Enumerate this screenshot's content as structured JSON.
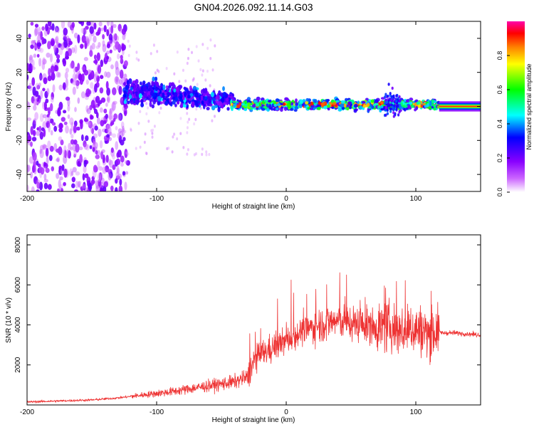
{
  "title": "GN04.2026.092.11.14.G03",
  "chart_data": [
    {
      "type": "heatmap",
      "title": "GN04.2026.092.11.14.G03",
      "xlabel": "Height of straight line (km)",
      "ylabel": "Frequency (Hz)",
      "xlim": [
        -200,
        150
      ],
      "ylim": [
        -50,
        50
      ],
      "xticks": [
        -200,
        -100,
        0,
        100
      ],
      "yticks": [
        -40,
        -20,
        0,
        20,
        40
      ],
      "colorbar": {
        "label": "Normalized spectral amplitude",
        "range": [
          0.0,
          1.0
        ],
        "ticks": [
          0.0,
          0.2,
          0.4,
          0.6,
          0.8
        ],
        "colors": [
          "#ffffff",
          "#cc66ff",
          "#8800ff",
          "#0000ff",
          "#00ffff",
          "#00ff00",
          "#ffff00",
          "#ff8000",
          "#ff0000",
          "#ff00aa"
        ]
      },
      "regions": [
        {
          "x_range": [
            -200,
            -125
          ],
          "freq_range": [
            -50,
            50
          ],
          "amplitude": "low, scattered"
        },
        {
          "x_range": [
            -125,
            -40
          ],
          "freq_range": [
            -15,
            20
          ],
          "amplitude": "medium"
        },
        {
          "x_range": [
            -40,
            118
          ],
          "freq_range": [
            -5,
            8
          ],
          "amplitude": "high, concentrated near 0 Hz"
        },
        {
          "x_range": [
            118,
            150
          ],
          "freq_range": [
            -2,
            2
          ],
          "amplitude": "peak line at 0 Hz"
        }
      ]
    },
    {
      "type": "line",
      "xlabel": "Height of straight line (km)",
      "ylabel": "SNR (10 * v/v)",
      "xlim": [
        -200,
        150
      ],
      "ylim": [
        0,
        8500
      ],
      "xticks": [
        -200,
        -100,
        0,
        100
      ],
      "yticks": [
        2000,
        4000,
        6000,
        8000
      ],
      "color": "#ee3333",
      "series": [
        {
          "name": "SNR",
          "x": [
            -200,
            -175,
            -150,
            -130,
            -110,
            -90,
            -75,
            -60,
            -50,
            -40,
            -30,
            -25,
            -20,
            -10,
            0,
            10,
            20,
            30,
            40,
            50,
            60,
            70,
            80,
            90,
            100,
            110,
            118,
            120,
            130,
            140,
            150
          ],
          "y": [
            150,
            200,
            250,
            350,
            500,
            650,
            800,
            950,
            1050,
            1150,
            1400,
            2200,
            2500,
            2900,
            3200,
            3600,
            3900,
            4100,
            4200,
            4100,
            4000,
            3900,
            3900,
            3700,
            3800,
            3600,
            3700,
            3600,
            3600,
            3550,
            3500
          ]
        }
      ]
    }
  ]
}
